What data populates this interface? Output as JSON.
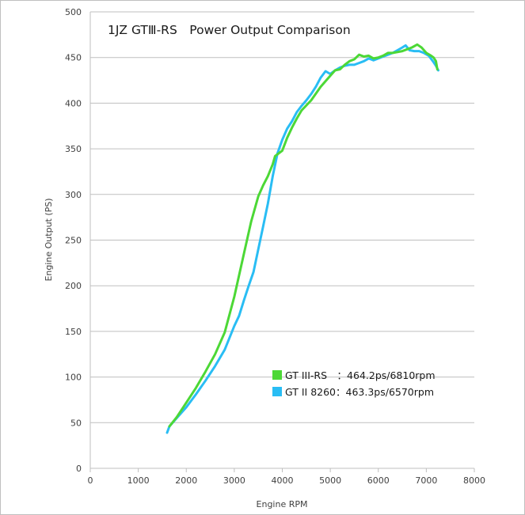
{
  "chart_data": {
    "type": "line",
    "title": "1JZ GTⅢ-RS　Power Output Comparison",
    "xlabel": "Engine RPM",
    "ylabel": "Engine Output (PS)",
    "xlim": [
      0,
      8000
    ],
    "ylim": [
      0,
      500
    ],
    "x_ticks": [
      0,
      1000,
      2000,
      3000,
      4000,
      5000,
      6000,
      7000,
      8000
    ],
    "y_ticks": [
      0,
      50,
      100,
      150,
      200,
      250,
      300,
      350,
      400,
      450,
      500
    ],
    "grid": "horizontal",
    "legend_position": "lower-right",
    "series": [
      {
        "name": "GT III-RS　：464.2ps/6810rpm",
        "color": "#4cd836",
        "points": [
          [
            1650,
            46
          ],
          [
            1800,
            56
          ],
          [
            2000,
            72
          ],
          [
            2200,
            88
          ],
          [
            2400,
            106
          ],
          [
            2600,
            125
          ],
          [
            2800,
            149
          ],
          [
            3000,
            188
          ],
          [
            3200,
            235
          ],
          [
            3350,
            270
          ],
          [
            3500,
            298
          ],
          [
            3600,
            310
          ],
          [
            3700,
            320
          ],
          [
            3800,
            333
          ],
          [
            3850,
            342
          ],
          [
            4000,
            348
          ],
          [
            4100,
            362
          ],
          [
            4200,
            373
          ],
          [
            4300,
            383
          ],
          [
            4400,
            392
          ],
          [
            4600,
            403
          ],
          [
            4800,
            418
          ],
          [
            5000,
            430
          ],
          [
            5100,
            436
          ],
          [
            5200,
            437
          ],
          [
            5300,
            442
          ],
          [
            5400,
            446
          ],
          [
            5500,
            448
          ],
          [
            5600,
            453
          ],
          [
            5700,
            451
          ],
          [
            5800,
            452
          ],
          [
            5900,
            449
          ],
          [
            6000,
            450
          ],
          [
            6100,
            452
          ],
          [
            6200,
            455
          ],
          [
            6300,
            455
          ],
          [
            6400,
            456
          ],
          [
            6500,
            457
          ],
          [
            6600,
            459
          ],
          [
            6700,
            461
          ],
          [
            6810,
            464.2
          ],
          [
            6900,
            461
          ],
          [
            7000,
            455
          ],
          [
            7100,
            452
          ],
          [
            7150,
            450
          ],
          [
            7200,
            446
          ],
          [
            7230,
            437
          ]
        ]
      },
      {
        "name": "GT II 8260：463.3ps/6570rpm",
        "color": "#29bdf4",
        "points": [
          [
            1600,
            39
          ],
          [
            1650,
            46
          ],
          [
            1800,
            55
          ],
          [
            2000,
            67
          ],
          [
            2200,
            81
          ],
          [
            2400,
            96
          ],
          [
            2600,
            112
          ],
          [
            2800,
            130
          ],
          [
            3000,
            156
          ],
          [
            3100,
            167
          ],
          [
            3200,
            184
          ],
          [
            3300,
            200
          ],
          [
            3400,
            215
          ],
          [
            3500,
            240
          ],
          [
            3600,
            265
          ],
          [
            3700,
            290
          ],
          [
            3800,
            320
          ],
          [
            3900,
            345
          ],
          [
            4000,
            360
          ],
          [
            4100,
            372
          ],
          [
            4200,
            380
          ],
          [
            4300,
            390
          ],
          [
            4400,
            397
          ],
          [
            4500,
            403
          ],
          [
            4600,
            410
          ],
          [
            4700,
            418
          ],
          [
            4800,
            428
          ],
          [
            4900,
            435
          ],
          [
            5000,
            432
          ],
          [
            5100,
            436
          ],
          [
            5200,
            439
          ],
          [
            5300,
            441
          ],
          [
            5400,
            442
          ],
          [
            5500,
            442
          ],
          [
            5600,
            444
          ],
          [
            5700,
            446
          ],
          [
            5800,
            449
          ],
          [
            5900,
            447
          ],
          [
            6000,
            449
          ],
          [
            6100,
            451
          ],
          [
            6200,
            453
          ],
          [
            6300,
            455
          ],
          [
            6400,
            458
          ],
          [
            6500,
            461
          ],
          [
            6570,
            463.3
          ],
          [
            6650,
            458
          ],
          [
            6750,
            457
          ],
          [
            6850,
            457
          ],
          [
            6950,
            455
          ],
          [
            7050,
            452
          ],
          [
            7150,
            445
          ],
          [
            7200,
            441
          ],
          [
            7250,
            436
          ]
        ]
      }
    ]
  }
}
